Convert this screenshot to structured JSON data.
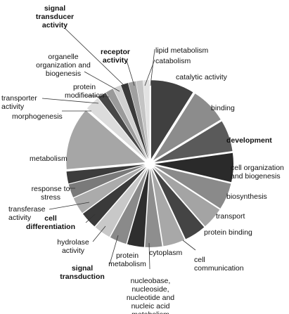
{
  "chart_data": {
    "type": "pie",
    "title": "",
    "exploded": true,
    "slices": [
      {
        "label": "catalytic activity",
        "value": 9.0,
        "color": "#404040",
        "bold": false
      },
      {
        "label": "binding",
        "value": 7.5,
        "color": "#8c8c8c",
        "bold": false
      },
      {
        "label": "development",
        "value": 6.5,
        "color": "#5a5a5a",
        "bold": true
      },
      {
        "label": "cell organization and biogenesis",
        "value": 6.0,
        "color": "#2a2a2a",
        "bold": false
      },
      {
        "label": "biosynthesis",
        "value": 5.5,
        "color": "#8a8a8a",
        "bold": false
      },
      {
        "label": "transport",
        "value": 4.5,
        "color": "#a4a4a4",
        "bold": false
      },
      {
        "label": "protein binding",
        "value": 4.5,
        "color": "#444444",
        "bold": false
      },
      {
        "label": "cell communication",
        "value": 4.5,
        "color": "#a8a8a8",
        "bold": false
      },
      {
        "label": "cytoplasm",
        "value": 3.5,
        "color": "#8e8e8e",
        "bold": false
      },
      {
        "label": "nucleobase, nucleoside, nucleotide and nucleic acid metabolism",
        "value": 3.5,
        "color": "#2e2e2e",
        "bold": false
      },
      {
        "label": "protein metabolism",
        "value": 3.5,
        "color": "#8a8a8a",
        "bold": false
      },
      {
        "label": "signal transduction",
        "value": 3.5,
        "color": "#c8c8c8",
        "bold": true
      },
      {
        "label": "hydrolase activity",
        "value": 3.5,
        "color": "#3a3a3a",
        "bold": false
      },
      {
        "label": "cell differentiation",
        "value": 3.5,
        "color": "#ababab",
        "bold": true
      },
      {
        "label": "transferase activity",
        "value": 2.8,
        "color": "#7a7a7a",
        "bold": false
      },
      {
        "label": "response to stress",
        "value": 2.5,
        "color": "#3c3c3c",
        "bold": false
      },
      {
        "label": "metabolism",
        "value": 13.0,
        "color": "#a6a6a6",
        "bold": false
      },
      {
        "label": "morphogenesis",
        "value": 3.0,
        "color": "#dcdcdc",
        "bold": false
      },
      {
        "label": "transporter activity",
        "value": 1.8,
        "color": "#474747",
        "bold": false
      },
      {
        "label": "protein modification",
        "value": 1.6,
        "color": "#9a9a9a",
        "bold": false
      },
      {
        "label": "organelle organization and biogenesis",
        "value": 1.6,
        "color": "#d0d0d0",
        "bold": false
      },
      {
        "label": "signal transducer activity",
        "value": 1.5,
        "color": "#3a3a3a",
        "bold": true
      },
      {
        "label": "receptor activity",
        "value": 1.5,
        "color": "#a0a0a0",
        "bold": true
      },
      {
        "label": "catabolism",
        "value": 1.4,
        "color": "#c4c4c4",
        "bold": false
      },
      {
        "label": "lipid metabolism",
        "value": 1.3,
        "color": "#e2e2e2",
        "bold": false
      }
    ]
  }
}
